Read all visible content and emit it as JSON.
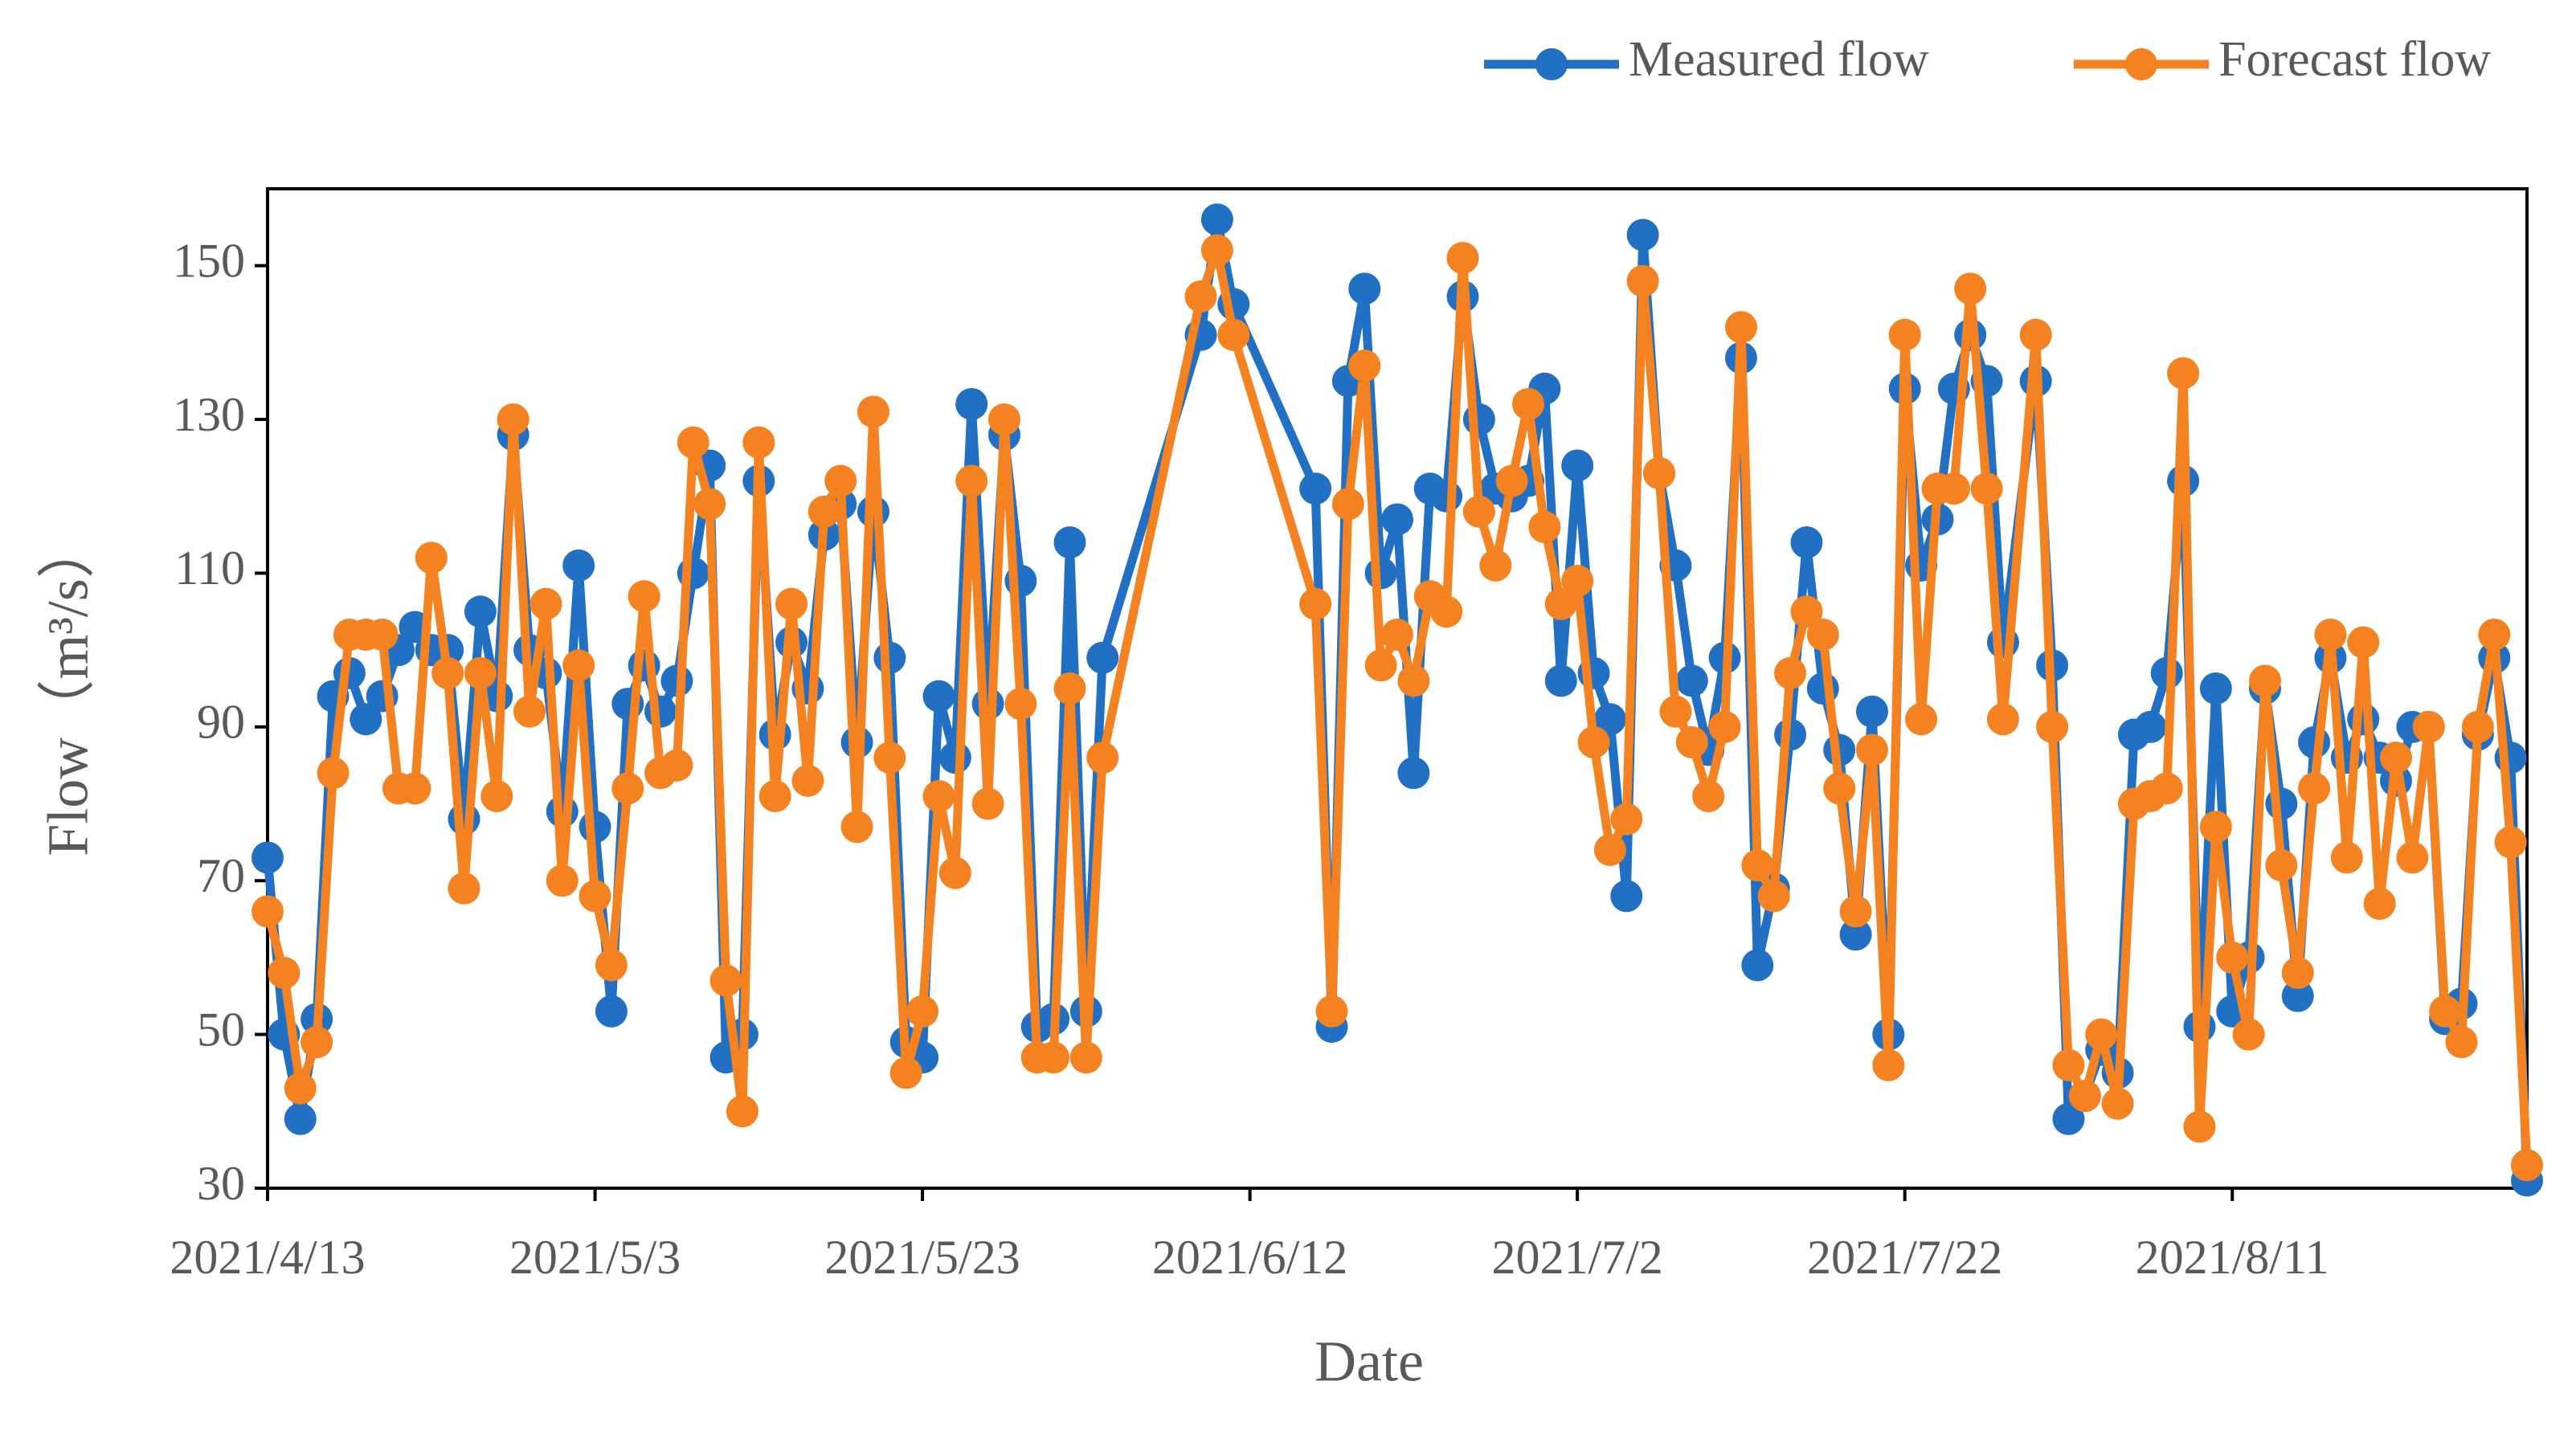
{
  "chart_data": {
    "type": "line",
    "xlabel": "Date",
    "ylabel": "Flow（m³/s）",
    "x": [
      "2021/4/13",
      "2021/4/14",
      "2021/4/15",
      "2021/4/16",
      "2021/4/17",
      "2021/4/18",
      "2021/4/19",
      "2021/4/20",
      "2021/4/21",
      "2021/4/22",
      "2021/4/23",
      "2021/4/24",
      "2021/4/25",
      "2021/4/26",
      "2021/4/27",
      "2021/4/28",
      "2021/4/29",
      "2021/4/30",
      "2021/5/1",
      "2021/5/2",
      "2021/5/3",
      "2021/5/4",
      "2021/5/5",
      "2021/5/6",
      "2021/5/7",
      "2021/5/8",
      "2021/5/9",
      "2021/5/10",
      "2021/5/11",
      "2021/5/12",
      "2021/5/13",
      "2021/5/14",
      "2021/5/15",
      "2021/5/16",
      "2021/5/17",
      "2021/5/18",
      "2021/5/19",
      "2021/5/20",
      "2021/5/21",
      "2021/5/22",
      "2021/5/23",
      "2021/5/24",
      "2021/5/25",
      "2021/5/26",
      "2021/5/27",
      "2021/5/28",
      "2021/5/29",
      "2021/5/30",
      "2021/5/31",
      "2021/6/1",
      "2021/6/2",
      "2021/6/3",
      "2021/6/9",
      "2021/6/10",
      "2021/6/11",
      "2021/6/16",
      "2021/6/17",
      "2021/6/18",
      "2021/6/19",
      "2021/6/20",
      "2021/6/21",
      "2021/6/22",
      "2021/6/23",
      "2021/6/24",
      "2021/6/25",
      "2021/6/26",
      "2021/6/27",
      "2021/6/28",
      "2021/6/29",
      "2021/6/30",
      "2021/7/1",
      "2021/7/2",
      "2021/7/3",
      "2021/7/4",
      "2021/7/5",
      "2021/7/6",
      "2021/7/7",
      "2021/7/8",
      "2021/7/9",
      "2021/7/10",
      "2021/7/11",
      "2021/7/12",
      "2021/7/13",
      "2021/7/14",
      "2021/7/15",
      "2021/7/16",
      "2021/7/17",
      "2021/7/18",
      "2021/7/19",
      "2021/7/20",
      "2021/7/21",
      "2021/7/22",
      "2021/7/23",
      "2021/7/24",
      "2021/7/25",
      "2021/7/26",
      "2021/7/27",
      "2021/7/28",
      "2021/7/30",
      "2021/7/31",
      "2021/8/1",
      "2021/8/2",
      "2021/8/3",
      "2021/8/4",
      "2021/8/5",
      "2021/8/6",
      "2021/8/7",
      "2021/8/8",
      "2021/8/9",
      "2021/8/10",
      "2021/8/11",
      "2021/8/12",
      "2021/8/13",
      "2021/8/14",
      "2021/8/15",
      "2021/8/16",
      "2021/8/17",
      "2021/8/18",
      "2021/8/19",
      "2021/8/20",
      "2021/8/21",
      "2021/8/22",
      "2021/8/23",
      "2021/8/24",
      "2021/8/25",
      "2021/8/26",
      "2021/8/27",
      "2021/8/28",
      "2021/8/29"
    ],
    "series": [
      {
        "name": "Measured flow",
        "color": "#2170c4",
        "values": [
          73,
          50,
          39,
          52,
          94,
          97,
          91,
          94,
          100,
          103,
          100,
          100,
          78,
          105,
          94,
          128,
          100,
          97,
          79,
          111,
          77,
          53,
          93,
          98,
          92,
          96,
          110,
          124,
          47,
          50,
          122,
          89,
          101,
          95,
          115,
          119,
          88,
          118,
          99,
          49,
          47,
          94,
          86,
          132,
          93,
          128,
          109,
          51,
          52,
          114,
          53,
          99,
          141,
          156,
          145,
          121,
          51,
          135,
          147,
          110,
          117,
          84,
          121,
          120,
          146,
          130,
          121,
          120,
          122,
          134,
          96,
          124,
          97,
          91,
          68,
          154,
          123,
          111,
          96,
          87,
          99,
          138,
          59,
          69,
          89,
          114,
          95,
          87,
          63,
          92,
          50,
          134,
          111,
          117,
          134,
          141,
          135,
          101,
          135,
          98,
          39,
          42,
          48,
          45,
          89,
          90,
          97,
          122,
          51,
          95,
          53,
          60,
          95,
          80,
          55,
          88,
          99,
          86,
          91,
          86,
          83,
          90,
          90,
          52,
          54,
          89,
          99,
          86,
          31
        ]
      },
      {
        "name": "Forecast flow",
        "color": "#f58220",
        "values": [
          66,
          58,
          43,
          49,
          84,
          102,
          102,
          102,
          82,
          82,
          112,
          97,
          69,
          97,
          81,
          130,
          92,
          106,
          70,
          98,
          68,
          59,
          82,
          107,
          84,
          85,
          127,
          119,
          57,
          40,
          127,
          81,
          106,
          83,
          118,
          122,
          77,
          131,
          86,
          45,
          53,
          81,
          71,
          122,
          80,
          130,
          93,
          47,
          47,
          95,
          47,
          86,
          146,
          152,
          141,
          106,
          53,
          119,
          137,
          98,
          102,
          96,
          107,
          105,
          151,
          118,
          111,
          122,
          132,
          116,
          106,
          109,
          88,
          74,
          78,
          148,
          123,
          92,
          88,
          81,
          90,
          142,
          72,
          68,
          97,
          105,
          102,
          82,
          66,
          87,
          46,
          141,
          91,
          121,
          121,
          147,
          121,
          91,
          141,
          90,
          46,
          42,
          50,
          41,
          80,
          81,
          82,
          136,
          38,
          77,
          60,
          50,
          96,
          72,
          58,
          82,
          102,
          73,
          101,
          67,
          86,
          73,
          90,
          53,
          49,
          90,
          102,
          75,
          33
        ]
      }
    ],
    "xlim": [
      "2021/4/13",
      "2021/8/29"
    ],
    "xticks": [
      "2021/4/13",
      "2021/5/3",
      "2021/5/23",
      "2021/6/12",
      "2021/7/2",
      "2021/7/22",
      "2021/8/11"
    ],
    "ylim": [
      30,
      160
    ],
    "yticks": [
      30,
      50,
      70,
      90,
      110,
      130,
      150
    ],
    "grid": false,
    "legend": "top-right"
  }
}
